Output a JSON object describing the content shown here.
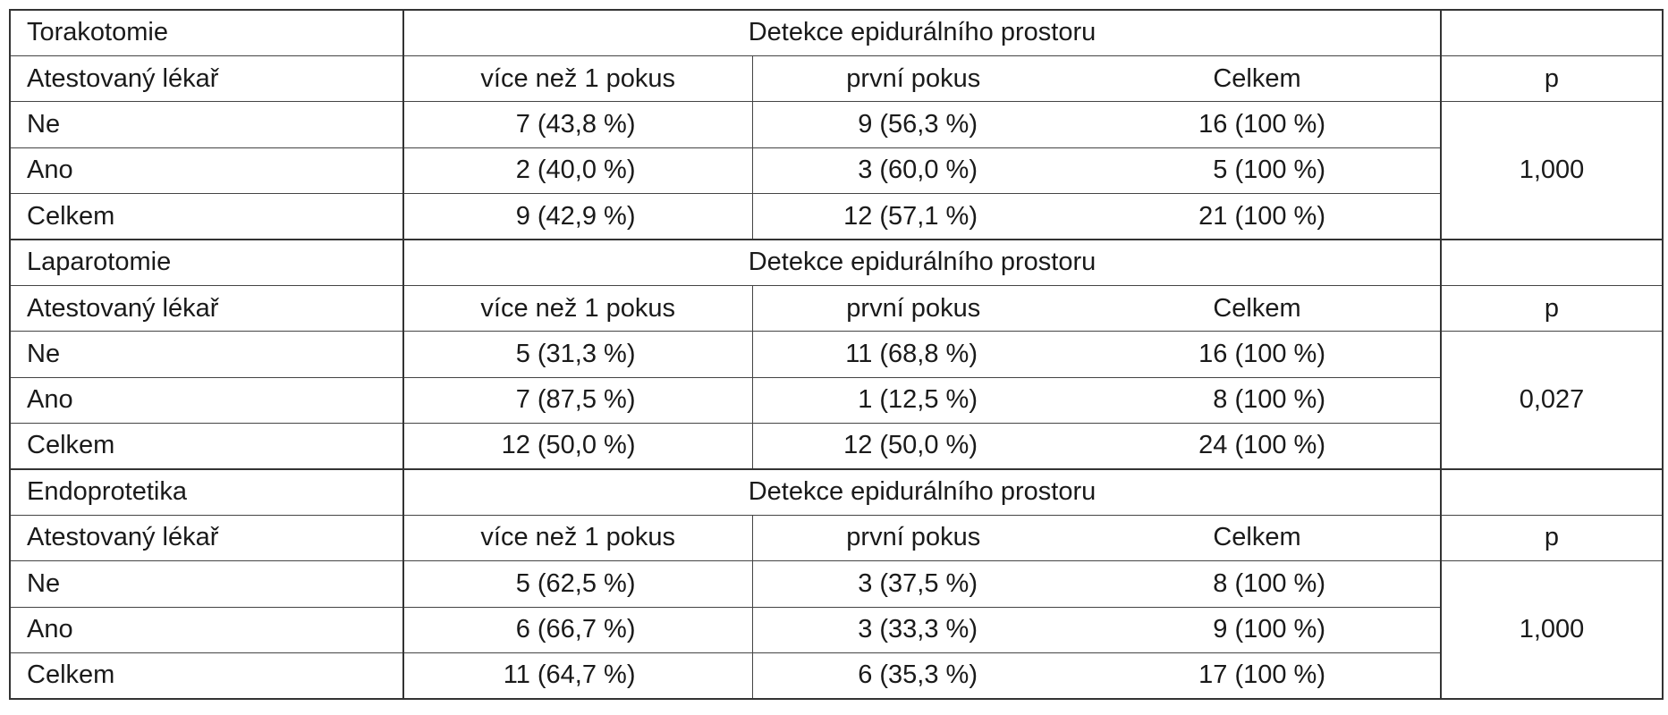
{
  "table": {
    "sections": [
      {
        "title": "Torakotomie",
        "group_header": "Detekce epidurálního prostoru",
        "columns": [
          "Atestovaný lékař",
          "více než 1 pokus",
          "první pokus",
          "Celkem",
          "p"
        ],
        "rows": [
          {
            "label": "Ne",
            "more": "7 (43,8 %)",
            "first": "9 (56,3 %)",
            "total": "16 (100 %)"
          },
          {
            "label": "Ano",
            "more": "2 (40,0 %)",
            "first": "3 (60,0 %)",
            "total": "5 (100 %)"
          },
          {
            "label": "Celkem",
            "more": "9 (42,9 %)",
            "first": "12 (57,1 %)",
            "total": "21 (100 %)"
          }
        ],
        "p": "1,000"
      },
      {
        "title": "Laparotomie",
        "group_header": "Detekce epidurálního prostoru",
        "columns": [
          "Atestovaný lékař",
          "více než 1 pokus",
          "první pokus",
          "Celkem",
          "p"
        ],
        "rows": [
          {
            "label": "Ne",
            "more": "5 (31,3 %)",
            "first": "11 (68,8 %)",
            "total": "16 (100 %)"
          },
          {
            "label": "Ano",
            "more": "7 (87,5 %)",
            "first": "1 (12,5 %)",
            "total": "8 (100 %)"
          },
          {
            "label": "Celkem",
            "more": "12 (50,0 %)",
            "first": "12 (50,0 %)",
            "total": "24 (100 %)"
          }
        ],
        "p": "0,027"
      },
      {
        "title": "Endoprotetika",
        "group_header": "Detekce epidurálního prostoru",
        "columns": [
          "Atestovaný lékař",
          "více než 1 pokus",
          "první pokus",
          "Celkem",
          "p"
        ],
        "rows": [
          {
            "label": "Ne",
            "more": "5 (62,5 %)",
            "first": "3 (37,5 %)",
            "total": "8 (100 %)"
          },
          {
            "label": "Ano",
            "more": "6 (66,7 %)",
            "first": "3 (33,3 %)",
            "total": "9 (100 %)"
          },
          {
            "label": "Celkem",
            "more": "11 (64,7 %)",
            "first": "6 (35,3 %)",
            "total": "17 (100 %)"
          }
        ],
        "p": "1,000"
      }
    ]
  }
}
